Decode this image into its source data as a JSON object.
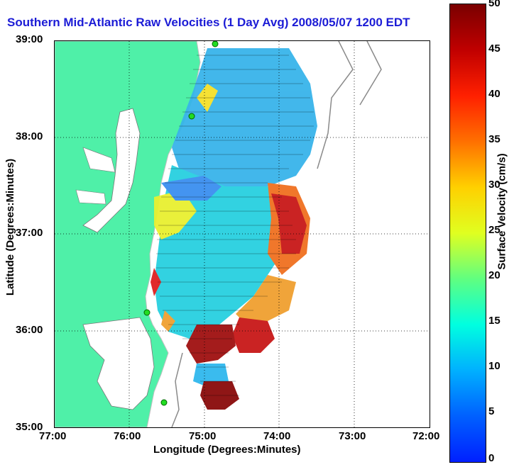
{
  "title": "Southern Mid-Atlantic Raw Velocities (1 Day Avg) 2008/05/07 1200 EDT",
  "axes": {
    "xlabel": "Longitude (Degrees:Minutes)",
    "ylabel": "Latitude (Degrees:Minutes)",
    "xticks": [
      "77:00",
      "76:00",
      "75:00",
      "74:00",
      "73:00",
      "72:00"
    ],
    "yticks": [
      "39:00",
      "38:00",
      "37:00",
      "36:00",
      "35:00"
    ],
    "xlim": [
      -77,
      -72
    ],
    "ylim": [
      35,
      39
    ],
    "grid": "dotted"
  },
  "colorbar": {
    "label": "Surface Velocity (cm/s)",
    "ticks": [
      "50",
      "45",
      "40",
      "35",
      "30",
      "25",
      "20",
      "15",
      "10",
      "5",
      "0"
    ],
    "range": [
      0,
      50
    ]
  },
  "colors": {
    "land": "#4ff0a8",
    "title": "#1c1cd6",
    "station": "#22dd22"
  },
  "stations": [
    {
      "lon": -74.9,
      "lat": 39.0
    },
    {
      "lon": -75.1,
      "lat": 38.23
    },
    {
      "lon": -75.72,
      "lat": 36.17
    },
    {
      "lon": -75.5,
      "lat": 35.25
    }
  ]
}
